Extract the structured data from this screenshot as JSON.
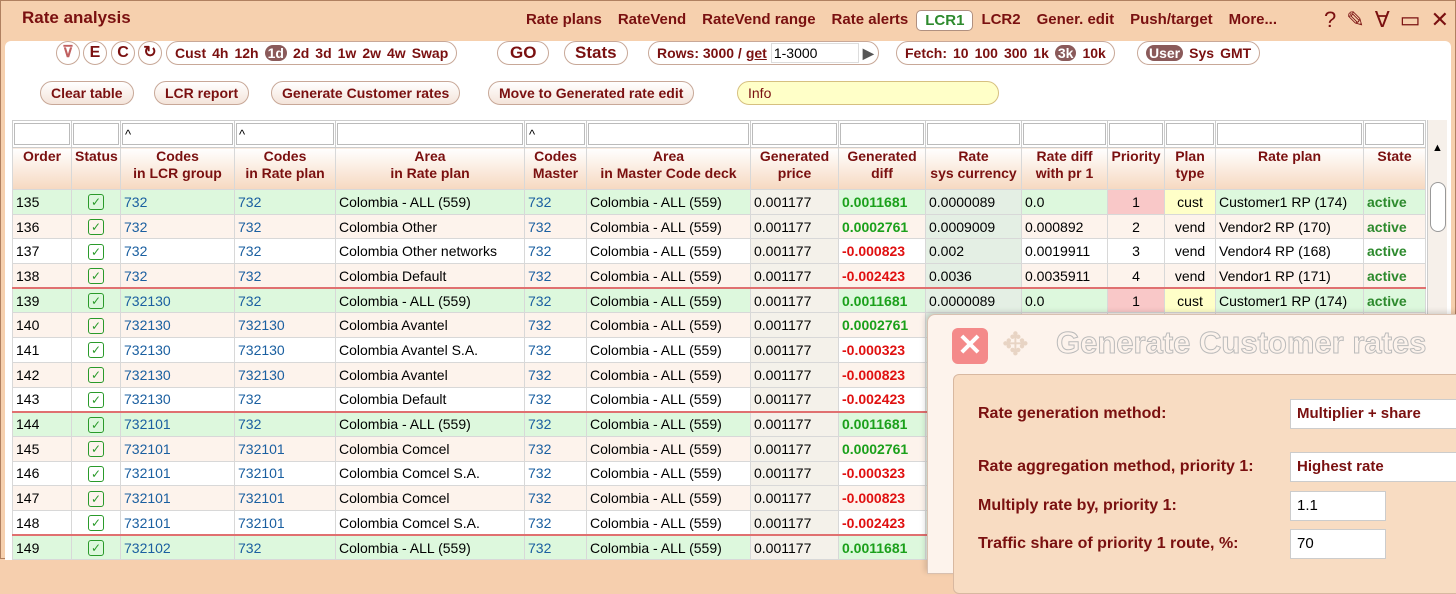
{
  "app": {
    "title": "Rate analysis"
  },
  "nav": [
    "Rate plans",
    "RateVend",
    "RateVend range",
    "Rate alerts",
    "LCR1",
    "LCR2",
    "Gener. edit",
    "Push/target",
    "More..."
  ],
  "nav_active": "LCR1",
  "window_icons": [
    "help-icon",
    "pencil-icon",
    "collapse-icon",
    "maximize-icon",
    "close-icon"
  ],
  "toolbar": {
    "circle_buttons": [
      "E",
      "C"
    ],
    "period": {
      "items": [
        "Cust",
        "4h",
        "12h",
        "1d",
        "2d",
        "3d",
        "1w",
        "2w",
        "4w",
        "Swap"
      ],
      "selected": "1d"
    },
    "go": "GO",
    "stats": "Stats",
    "rows_label": "Rows: 3000 /",
    "get_label": "get",
    "rows_range": "1-3000",
    "fetch": {
      "label": "Fetch:",
      "items": [
        "10",
        "100",
        "300",
        "1k",
        "3k",
        "10k"
      ],
      "selected": "3k"
    },
    "tz": {
      "items": [
        "User",
        "Sys",
        "GMT"
      ],
      "selected": "User"
    }
  },
  "actions": [
    "Clear table",
    "LCR report",
    "Generate Customer rates",
    "Move to Generated rate edit"
  ],
  "info": "Info",
  "filters": [
    "",
    "",
    "^",
    "^",
    "",
    "^",
    "",
    "",
    "",
    "",
    "",
    "",
    "",
    "",
    ""
  ],
  "columns": [
    "Order",
    "Status",
    "Codes\nin LCR group",
    "Codes\nin Rate plan",
    "Area\nin Rate plan",
    "Codes\nMaster",
    "Area\nin Master Code deck",
    "Generated\nprice",
    "Generated\ndiff",
    "Rate\nsys currency",
    "Rate diff\nwith pr 1",
    "Priority",
    "Plan\ntype",
    "Rate plan",
    "State"
  ],
  "rows": [
    [
      "135",
      "732",
      "732",
      "Colombia - ALL (559)",
      "732",
      "Colombia - ALL (559)",
      "0.001177",
      "0.0011681",
      "0.0000089",
      "0.0",
      "1",
      "cust",
      "Customer1 RP (174)",
      "active"
    ],
    [
      "136",
      "732",
      "732",
      "Colombia Other",
      "732",
      "Colombia - ALL (559)",
      "0.001177",
      "0.0002761",
      "0.0009009",
      "0.000892",
      "2",
      "vend",
      "Vendor2 RP (170)",
      "active"
    ],
    [
      "137",
      "732",
      "732",
      "Colombia Other networks",
      "732",
      "Colombia - ALL (559)",
      "0.001177",
      "-0.000823",
      "0.002",
      "0.0019911",
      "3",
      "vend",
      "Vendor4 RP (168)",
      "active"
    ],
    [
      "138",
      "732",
      "732",
      "Colombia Default",
      "732",
      "Colombia - ALL (559)",
      "0.001177",
      "-0.002423",
      "0.0036",
      "0.0035911",
      "4",
      "vend",
      "Vendor1 RP (171)",
      "active"
    ],
    [
      "139",
      "732130",
      "732",
      "Colombia - ALL (559)",
      "732",
      "Colombia - ALL (559)",
      "0.001177",
      "0.0011681",
      "0.0000089",
      "0.0",
      "1",
      "cust",
      "Customer1 RP (174)",
      "active"
    ],
    [
      "140",
      "732130",
      "732130",
      "Colombia Avantel",
      "732",
      "Colombia - ALL (559)",
      "0.001177",
      "0.0002761"
    ],
    [
      "141",
      "732130",
      "732130",
      "Colombia Avantel S.A.",
      "732",
      "Colombia - ALL (559)",
      "0.001177",
      "-0.000323"
    ],
    [
      "142",
      "732130",
      "732130",
      "Colombia Avantel",
      "732",
      "Colombia - ALL (559)",
      "0.001177",
      "-0.000823"
    ],
    [
      "143",
      "732130",
      "732",
      "Colombia Default",
      "732",
      "Colombia - ALL (559)",
      "0.001177",
      "-0.002423"
    ],
    [
      "144",
      "732101",
      "732",
      "Colombia - ALL (559)",
      "732",
      "Colombia - ALL (559)",
      "0.001177",
      "0.0011681"
    ],
    [
      "145",
      "732101",
      "732101",
      "Colombia Comcel",
      "732",
      "Colombia - ALL (559)",
      "0.001177",
      "0.0002761"
    ],
    [
      "146",
      "732101",
      "732101",
      "Colombia Comcel S.A.",
      "732",
      "Colombia - ALL (559)",
      "0.001177",
      "-0.000323"
    ],
    [
      "147",
      "732101",
      "732101",
      "Colombia Comcel",
      "732",
      "Colombia - ALL (559)",
      "0.001177",
      "-0.000823"
    ],
    [
      "148",
      "732101",
      "732101",
      "Colombia Comcel S.A.",
      "732",
      "Colombia - ALL (559)",
      "0.001177",
      "-0.002423"
    ],
    [
      "149",
      "732102",
      "732",
      "Colombia - ALL (559)",
      "732",
      "Colombia - ALL (559)",
      "0.001177",
      "0.0011681"
    ]
  ],
  "dialog": {
    "title": "Generate Customer rates",
    "fields": [
      {
        "label": "Rate generation method:",
        "value": "Multiplier + share"
      },
      {
        "label": "Rate aggregation method, priority 1:",
        "value": "Highest rate"
      },
      {
        "label": "Multiply rate by, priority 1:",
        "value": "1.1"
      },
      {
        "label": "Traffic share of priority 1 route, %:",
        "value": "70"
      }
    ]
  },
  "colors": {
    "accent": "#7a1010",
    "header_bg": "#f6d0ae",
    "positive": "#1ba01b",
    "negative": "#e01010",
    "group_row": "#ddf8dd"
  }
}
